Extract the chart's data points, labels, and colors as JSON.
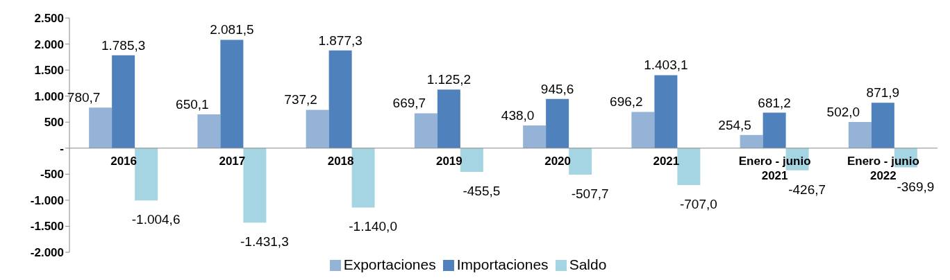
{
  "chart_data": {
    "type": "bar",
    "categories": [
      "2016",
      "2017",
      "2018",
      "2019",
      "2020",
      "2021",
      "Enero - junio 2021",
      "Enero - junio 2022"
    ],
    "series": [
      {
        "name": "Exportaciones",
        "color": "#95b3d7",
        "values": [
          780.7,
          650.1,
          737.2,
          669.7,
          438.0,
          696.2,
          254.5,
          502.0
        ],
        "value_labels": [
          "780,7",
          "650,1",
          "737,2",
          "669,7",
          "438,0",
          "696,2",
          "254,5",
          "502,0"
        ]
      },
      {
        "name": "Importaciones",
        "color": "#4f81bd",
        "values": [
          1785.3,
          2081.5,
          1877.3,
          1125.2,
          945.6,
          1403.1,
          681.2,
          871.9
        ],
        "value_labels": [
          "1.785,3",
          "2.081,5",
          "1.877,3",
          "1.125,2",
          "945,6",
          "1.403,1",
          "681,2",
          "871,9"
        ]
      },
      {
        "name": "Saldo",
        "color": "#a5d5e2",
        "values": [
          -1004.6,
          -1431.3,
          -1140.0,
          -455.5,
          -507.7,
          -707.0,
          -426.7,
          -369.9
        ],
        "value_labels": [
          "-1.004,6",
          "-1.431,3",
          "-1.140,0",
          "-455,5",
          "-507,7",
          "-707,0",
          "-426,7",
          "-369,9"
        ]
      }
    ],
    "ylim": [
      -2000,
      2500
    ],
    "yticks": [
      {
        "value": -2000,
        "label": "-2.000"
      },
      {
        "value": -1500,
        "label": "-1.500"
      },
      {
        "value": -1000,
        "label": "-1.000"
      },
      {
        "value": -500,
        "label": "-500"
      },
      {
        "value": 0,
        "label": "-"
      },
      {
        "value": 500,
        "label": "500"
      },
      {
        "value": 1000,
        "label": "1.000"
      },
      {
        "value": 1500,
        "label": "1.500"
      },
      {
        "value": 2000,
        "label": "2.000"
      },
      {
        "value": 2500,
        "label": "2.500"
      }
    ],
    "grid": false,
    "legend": "bottom"
  }
}
